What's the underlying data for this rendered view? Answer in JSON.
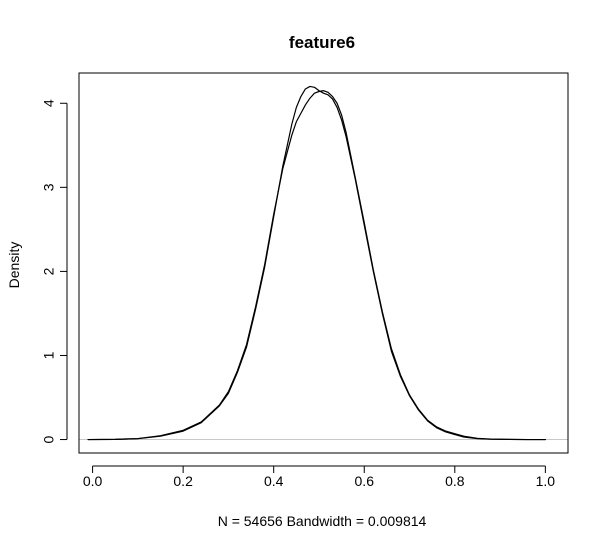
{
  "chart_data": {
    "type": "line",
    "title": "feature6",
    "ylabel": "Density",
    "xlabel": "",
    "subtitle": "N = 54656   Bandwidth = 0.009814",
    "xlim": [
      -0.03,
      1.05
    ],
    "ylim": [
      -0.16,
      4.36
    ],
    "x_ticks": [
      0.0,
      0.2,
      0.4,
      0.6,
      0.8,
      1.0
    ],
    "x_tick_labels": [
      "0.0",
      "0.2",
      "0.4",
      "0.6",
      "0.8",
      "1.0"
    ],
    "y_ticks": [
      0,
      1,
      2,
      3,
      4
    ],
    "y_tick_labels": [
      "0",
      "1",
      "2",
      "3",
      "4"
    ],
    "reference_line_y": 0,
    "grid": false,
    "legend": "none",
    "colors": {
      "line": "#000000",
      "reference_line": "#c8c8c8",
      "axis": "#000000",
      "background": "#ffffff"
    },
    "series": [
      {
        "x": [
          -0.01,
          0.05,
          0.1,
          0.15,
          0.2,
          0.24,
          0.28,
          0.3,
          0.32,
          0.34,
          0.36,
          0.38,
          0.4,
          0.42,
          0.44,
          0.45,
          0.46,
          0.47,
          0.48,
          0.49,
          0.5,
          0.51,
          0.52,
          0.53,
          0.54,
          0.55,
          0.56,
          0.58,
          0.6,
          0.62,
          0.64,
          0.66,
          0.68,
          0.7,
          0.72,
          0.74,
          0.76,
          0.78,
          0.8,
          0.82,
          0.85,
          0.88,
          0.92,
          0.96,
          1.0
        ],
        "values": [
          0.0,
          0.002,
          0.01,
          0.04,
          0.1,
          0.2,
          0.4,
          0.55,
          0.8,
          1.1,
          1.55,
          2.05,
          2.65,
          3.25,
          3.75,
          3.95,
          4.08,
          4.17,
          4.2,
          4.19,
          4.15,
          4.12,
          4.1,
          4.05,
          3.95,
          3.8,
          3.6,
          3.1,
          2.55,
          2.0,
          1.5,
          1.05,
          0.75,
          0.52,
          0.35,
          0.22,
          0.14,
          0.09,
          0.06,
          0.03,
          0.01,
          0.004,
          0.001,
          0.0,
          0.0
        ]
      },
      {
        "x": [
          -0.01,
          0.05,
          0.1,
          0.15,
          0.2,
          0.24,
          0.28,
          0.3,
          0.32,
          0.34,
          0.36,
          0.38,
          0.4,
          0.42,
          0.44,
          0.45,
          0.46,
          0.47,
          0.48,
          0.49,
          0.5,
          0.51,
          0.52,
          0.53,
          0.54,
          0.55,
          0.56,
          0.58,
          0.6,
          0.62,
          0.64,
          0.66,
          0.68,
          0.7,
          0.72,
          0.74,
          0.76,
          0.78,
          0.8,
          0.82,
          0.85,
          0.88,
          0.92,
          0.96,
          1.0
        ],
        "values": [
          0.0,
          0.002,
          0.012,
          0.045,
          0.11,
          0.21,
          0.41,
          0.57,
          0.82,
          1.13,
          1.58,
          2.08,
          2.68,
          3.22,
          3.62,
          3.78,
          3.88,
          3.98,
          4.06,
          4.12,
          4.14,
          4.15,
          4.13,
          4.08,
          4.0,
          3.86,
          3.65,
          3.12,
          2.58,
          2.02,
          1.52,
          1.08,
          0.77,
          0.53,
          0.36,
          0.23,
          0.15,
          0.1,
          0.07,
          0.04,
          0.015,
          0.005,
          0.002,
          0.0,
          0.0
        ]
      }
    ]
  }
}
